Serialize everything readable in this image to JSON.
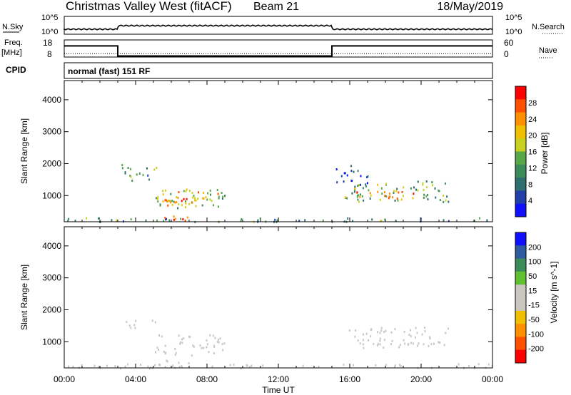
{
  "header": {
    "station": "Christmas Valley West (fitACF)",
    "beam": "Beam 21",
    "date": "18/May/2019"
  },
  "nsky_panel": {
    "left_label": "N.Sky",
    "right_label": "N.Search",
    "ticks_left": [
      "10^5",
      "10^0"
    ],
    "ticks_right": [
      "10^5",
      "10^0"
    ]
  },
  "freq_panel": {
    "left_label_1": "Freq.",
    "left_label_2": "[MHz]",
    "right_label": "Nave",
    "ticks_left": [
      "18",
      "8"
    ],
    "ticks_right": [
      "60",
      "0"
    ],
    "freq_steps": [
      {
        "start_h": 0,
        "end_h": 3,
        "value": 14.5
      },
      {
        "start_h": 3,
        "end_h": 15,
        "value": 8.6
      },
      {
        "start_h": 15,
        "end_h": 24,
        "value": 14.5
      }
    ],
    "nave_value": 12
  },
  "cpid_panel": {
    "label": "CPID",
    "value": "normal (fast) 151 RF"
  },
  "time_axis": {
    "label": "Time UT",
    "ticks": [
      "00:00",
      "04:00",
      "08:00",
      "12:00",
      "16:00",
      "20:00",
      "00:00"
    ],
    "range_hours": [
      0,
      24
    ]
  },
  "chart_data": [
    {
      "type": "heatmap",
      "title": "",
      "xlabel": "Time UT",
      "ylabel": "Slant Range [km]",
      "xlim": [
        0,
        24
      ],
      "ylim": [
        180,
        4600
      ],
      "yticks": [
        "1000",
        "2000",
        "3000",
        "4000"
      ],
      "colorbar": {
        "label": "Power [dB]",
        "ticks": [
          "28",
          "24",
          "20",
          "16",
          "12",
          "8",
          "4"
        ],
        "range": [
          0,
          30
        ],
        "colors": [
          "#1010ff",
          "#2040a8",
          "#2d6e6e",
          "#3c8c5a",
          "#58a848",
          "#c8d020",
          "#f0c000",
          "#ff9000",
          "#ff5000",
          "#ff0000"
        ]
      },
      "regions": [
        {
          "t0": 0.0,
          "t1": 24.0,
          "r0": 200,
          "r1": 330,
          "value": 10
        },
        {
          "t0": 5.0,
          "t1": 9.0,
          "r0": 620,
          "r1": 1240,
          "value": 14
        },
        {
          "t0": 5.2,
          "t1": 8.6,
          "r0": 720,
          "r1": 1150,
          "value": 21
        },
        {
          "t0": 5.6,
          "t1": 7.9,
          "r0": 780,
          "r1": 1050,
          "value": 24
        },
        {
          "t0": 5.0,
          "t1": 7.4,
          "r0": 230,
          "r1": 400,
          "value": 27
        },
        {
          "t0": 3.2,
          "t1": 5.2,
          "r0": 1500,
          "r1": 2000,
          "value": 11
        },
        {
          "t0": 15.7,
          "t1": 21.5,
          "r0": 830,
          "r1": 1480,
          "value": 13
        },
        {
          "t0": 16.0,
          "t1": 19.8,
          "r0": 900,
          "r1": 1200,
          "value": 22
        },
        {
          "t0": 15.2,
          "t1": 17.0,
          "r0": 1300,
          "r1": 2000,
          "value": 6
        }
      ]
    },
    {
      "type": "heatmap",
      "title": "",
      "xlabel": "Time UT",
      "ylabel": "Slant Range [km]",
      "xlim": [
        0,
        24
      ],
      "ylim": [
        180,
        4600
      ],
      "yticks": [
        "1000",
        "2000",
        "3000",
        "4000"
      ],
      "colorbar": {
        "label": "Velocity [m s^-1]",
        "ticks": [
          "200",
          "100",
          "50",
          "15",
          "-15",
          "-50",
          "-100",
          "-200"
        ],
        "range": [
          -250,
          250
        ],
        "colors": [
          "#ff0000",
          "#ff5000",
          "#ff9000",
          "#f0c000",
          "#c8c8c0",
          "#c8c8c0",
          "#60c030",
          "#3c8c5a",
          "#2d5aa0",
          "#1010ff"
        ]
      },
      "regions": [
        {
          "t0": 0.0,
          "t1": 24.0,
          "r0": 200,
          "r1": 330,
          "value": -30
        },
        {
          "t0": 5.0,
          "t1": 9.0,
          "r0": 600,
          "r1": 1240,
          "value": 0
        },
        {
          "t0": 5.2,
          "t1": 7.4,
          "r0": 230,
          "r1": 480,
          "value": 40
        },
        {
          "t0": 3.2,
          "t1": 5.2,
          "r0": 1450,
          "r1": 1700,
          "value": 0
        },
        {
          "t0": 15.7,
          "t1": 21.5,
          "r0": 830,
          "r1": 1480,
          "value": 0
        }
      ]
    }
  ]
}
